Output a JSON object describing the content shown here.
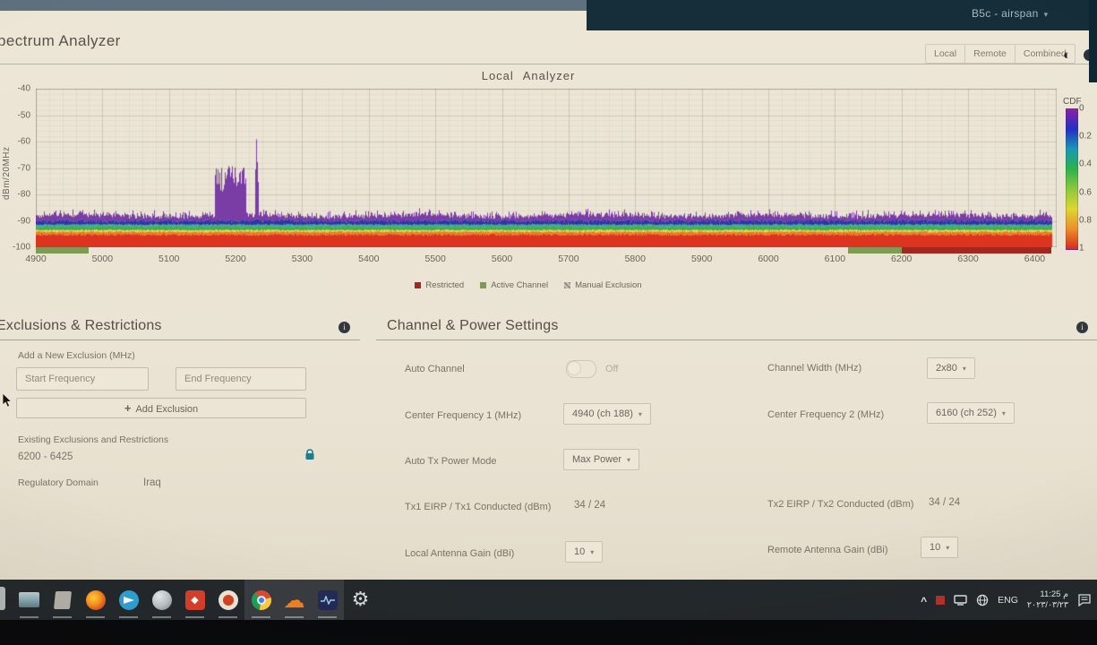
{
  "window": {
    "device_menu": "B5c - airspan"
  },
  "header": {
    "title": "pectrum Analyzer",
    "views": [
      "Local",
      "Remote",
      "Combined"
    ]
  },
  "chart_data": {
    "type": "heatmap",
    "title": "Local Analyzer",
    "ylabel": "dBm/20MHz",
    "xlim": [
      4900,
      6433
    ],
    "ylim": [
      -100,
      -40
    ],
    "x_ticks": [
      4900,
      5000,
      5100,
      5200,
      5300,
      5400,
      5500,
      5600,
      5700,
      5800,
      5900,
      6000,
      6100,
      6200,
      6300,
      6400
    ],
    "y_ticks": [
      -40,
      -50,
      -60,
      -70,
      -80,
      -90,
      -100
    ],
    "data_end_mhz": 6426,
    "noise_floor": {
      "band_tops_dbm": {
        "red": -95.2,
        "orange": -94.1,
        "yellow": -93.5,
        "green": -92.1,
        "teal": -91.4,
        "blue": -90.0,
        "purple_mean": -88.3
      },
      "purple_jitter_db": 2.2
    },
    "spikes": [
      {
        "shape": "comb",
        "from_mhz": 5168,
        "to_mhz": 5216,
        "top_min_dbm": -79,
        "top_max_dbm": -69
      },
      {
        "shape": "narrow",
        "center_mhz": 5231,
        "half_width_mhz": 2.5,
        "peak_dbm": -57
      }
    ],
    "colors": {
      "red": "#dd3420",
      "orange": "#ee7a26",
      "yellow": "#e8d83c",
      "green": "#44ad49",
      "teal": "#2fae9b",
      "blue": "#2d36a6",
      "purple": "#7a3da6"
    },
    "active_channels_mhz": [
      [
        4900,
        4980
      ],
      [
        6120,
        6200
      ]
    ],
    "exclusion_band_mhz": [
      6200,
      6425
    ],
    "active_channel_color": "#7d9b55",
    "exclusion_color": "#a3271e",
    "legend": [
      {
        "label": "Restricted",
        "color": "#a3271e",
        "style": "solid"
      },
      {
        "label": "Active Channel",
        "color": "#7d9b55",
        "style": "solid"
      },
      {
        "label": "Manual Exclusion",
        "color": "#8d8d85",
        "style": "hatched"
      }
    ],
    "colorbar": {
      "label": "CDF",
      "ticks": [
        "0",
        "0.2",
        "0.4",
        "0.6",
        "0.8",
        "1"
      ],
      "gradient": [
        "#8b1fa8",
        "#2330c4",
        "#1899b4",
        "#2cb24c",
        "#8cc93c",
        "#ded631",
        "#ec8e2a",
        "#d62b1c"
      ]
    }
  },
  "exclusions": {
    "heading": "Exclusions & Restrictions",
    "add_label": "Add a New Exclusion (MHz)",
    "start_placeholder": "Start Frequency",
    "end_placeholder": "End Frequency",
    "add_button": "Add Exclusion",
    "existing_label": "Existing Exclusions and Restrictions",
    "existing_items": [
      "6200 - 6425"
    ],
    "regulatory_label": "Regulatory Domain",
    "regulatory_value": "Iraq"
  },
  "channel_power": {
    "heading": "Channel & Power Settings",
    "auto_channel_label": "Auto Channel",
    "auto_channel_value": "Off",
    "channel_width_label": "Channel Width (MHz)",
    "channel_width_value": "2x80",
    "cf1_label": "Center Frequency 1 (MHz)",
    "cf1_value": "4940 (ch 188)",
    "cf2_label": "Center Frequency 2 (MHz)",
    "cf2_value": "6160 (ch 252)",
    "auto_tx_label": "Auto Tx Power Mode",
    "auto_tx_value": "Max Power",
    "tx1_label": "Tx1 EIRP / Tx1 Conducted (dBm)",
    "tx1_value": "34 / 24",
    "tx2_label": "Tx2 EIRP / Tx2 Conducted (dBm)",
    "tx2_value": "34 / 24",
    "local_gain_label": "Local Antenna Gain (dBi)",
    "local_gain_value": "10",
    "remote_gain_label": "Remote Antenna Gain (dBi)",
    "remote_gain_value": "10"
  },
  "taskbar": {
    "language": "ENG",
    "time": "11:25 م",
    "date": "٢٠٢٣/٠٣/٢٣",
    "icons": [
      "file-explorer",
      "document-app",
      "firefox",
      "telegram",
      "globe-app",
      "red-diamond-app",
      "openvpn",
      "chrome",
      "cloudflare",
      "signal-app",
      "settings-gear"
    ]
  }
}
